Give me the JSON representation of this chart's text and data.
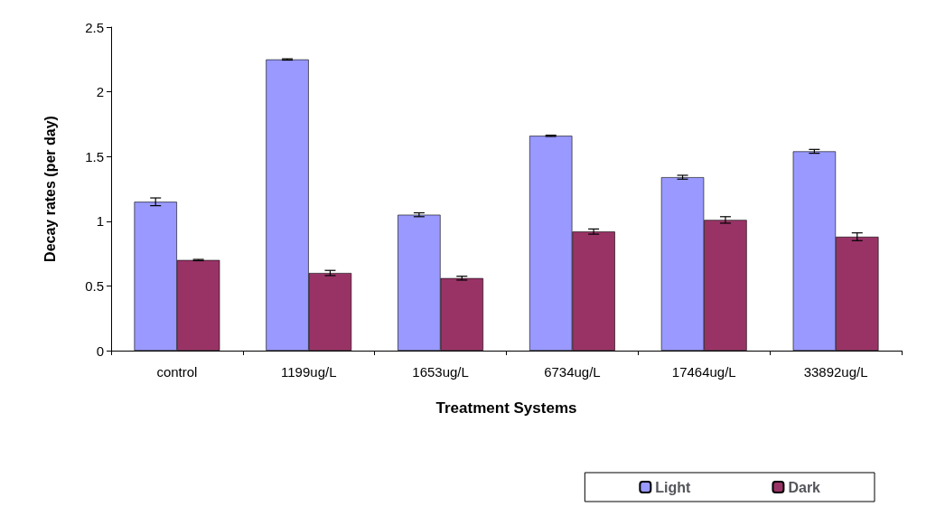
{
  "chart_data": {
    "type": "bar",
    "xlabel": "Treatment Systems",
    "ylabel": "Decay rates (per day)",
    "categories": [
      "control",
      "1199ug/L",
      "1653ug/L",
      "6734ug/L",
      "17464ug/L",
      "33892ug/L"
    ],
    "series": [
      {
        "name": "Light",
        "color": "#9999ff",
        "values": [
          1.15,
          2.25,
          1.05,
          1.66,
          1.34,
          1.54
        ],
        "errors": [
          0.03,
          0.005,
          0.015,
          0.005,
          0.015,
          0.015
        ]
      },
      {
        "name": "Dark",
        "color": "#993366",
        "values": [
          0.7,
          0.6,
          0.56,
          0.92,
          1.01,
          0.88
        ],
        "errors": [
          0.005,
          0.02,
          0.015,
          0.02,
          0.025,
          0.03
        ]
      }
    ],
    "ylim": [
      0,
      2.5
    ],
    "yticks": [
      0,
      0.5,
      1,
      1.5,
      2,
      2.5
    ],
    "grid": false,
    "legend": "bottom right"
  }
}
